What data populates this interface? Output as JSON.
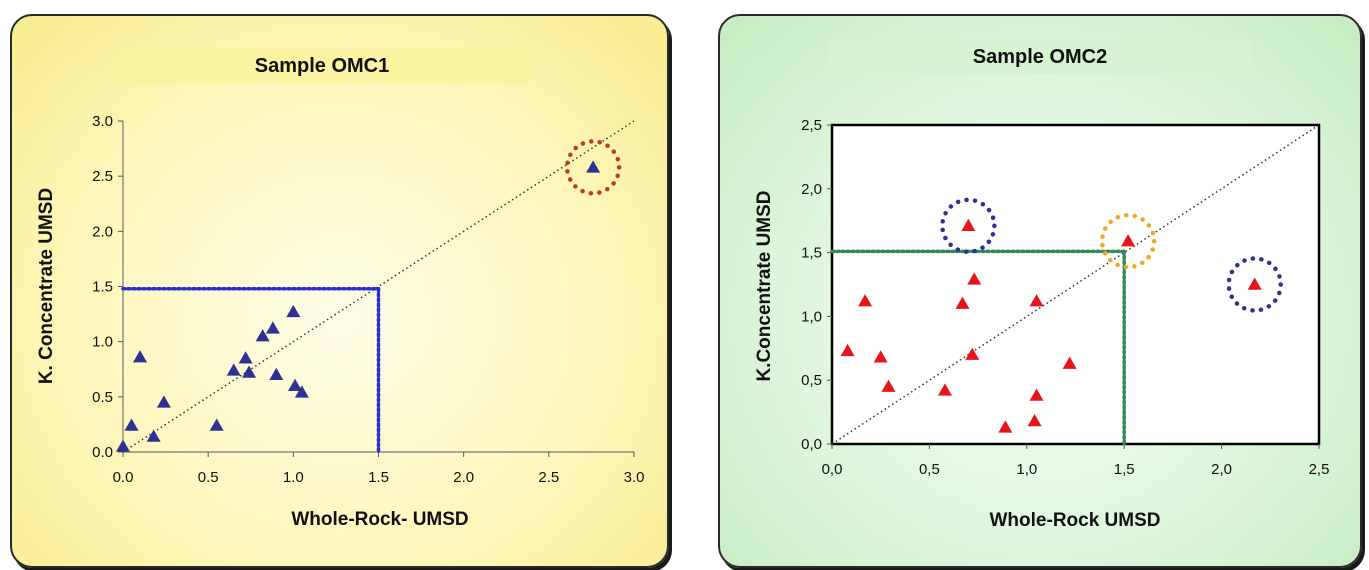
{
  "panels": [
    {
      "title": "Sample OMC1"
    },
    {
      "title": "Sample OMC2"
    }
  ],
  "chart_data": [
    {
      "type": "scatter",
      "title": "Sample OMC1",
      "xlabel": "Whole-Rock-  UMSD",
      "ylabel": "K. Concentrate UMSD",
      "xlim": [
        0,
        3
      ],
      "ylim": [
        0,
        3
      ],
      "x_ticks": [
        "0.0",
        "0.5",
        "1.0",
        "1.5",
        "2.0",
        "2.5",
        "3.0"
      ],
      "y_ticks": [
        "0.0",
        "0.5",
        "1.0",
        "1.5",
        "2.0",
        "2.5",
        "3.0"
      ],
      "grid": false,
      "marker_color": "#2e3192",
      "points": [
        {
          "x": 0.0,
          "y": 0.05
        },
        {
          "x": 0.05,
          "y": 0.24
        },
        {
          "x": 0.1,
          "y": 0.86
        },
        {
          "x": 0.18,
          "y": 0.14
        },
        {
          "x": 0.24,
          "y": 0.45
        },
        {
          "x": 0.55,
          "y": 0.24
        },
        {
          "x": 0.65,
          "y": 0.74
        },
        {
          "x": 0.72,
          "y": 0.85
        },
        {
          "x": 0.74,
          "y": 0.72
        },
        {
          "x": 0.82,
          "y": 1.05
        },
        {
          "x": 0.88,
          "y": 1.12
        },
        {
          "x": 0.9,
          "y": 0.7
        },
        {
          "x": 1.0,
          "y": 1.27
        },
        {
          "x": 1.01,
          "y": 0.6
        },
        {
          "x": 1.05,
          "y": 0.54
        },
        {
          "x": 2.76,
          "y": 2.58
        }
      ],
      "identity_line": true,
      "guide": {
        "x": 1.5,
        "y": 1.48,
        "color": "#2b2bd8"
      },
      "highlights": [
        {
          "x": 2.76,
          "y": 2.58,
          "color": "#c0392b"
        }
      ]
    },
    {
      "type": "scatter",
      "title": "Sample OMC2",
      "xlabel": "Whole-Rock UMSD",
      "ylabel": "K.Concentrate UMSD",
      "xlim": [
        0,
        2.5
      ],
      "ylim": [
        0,
        2.5
      ],
      "x_ticks": [
        "0,0",
        "0,5",
        "1,0",
        "1,5",
        "2,0",
        "2,5"
      ],
      "y_ticks": [
        "0,0",
        "0,5",
        "1,0",
        "1,5",
        "2,0",
        "2,5"
      ],
      "grid": false,
      "marker_color": "#e8141b",
      "points": [
        {
          "x": 0.08,
          "y": 0.73
        },
        {
          "x": 0.17,
          "y": 1.12
        },
        {
          "x": 0.25,
          "y": 0.68
        },
        {
          "x": 0.29,
          "y": 0.45
        },
        {
          "x": 0.58,
          "y": 0.42
        },
        {
          "x": 0.67,
          "y": 1.1
        },
        {
          "x": 0.7,
          "y": 1.71
        },
        {
          "x": 0.72,
          "y": 0.7
        },
        {
          "x": 0.73,
          "y": 1.29
        },
        {
          "x": 0.89,
          "y": 0.13
        },
        {
          "x": 1.04,
          "y": 0.18
        },
        {
          "x": 1.05,
          "y": 0.38
        },
        {
          "x": 1.05,
          "y": 1.12
        },
        {
          "x": 1.22,
          "y": 0.63
        },
        {
          "x": 1.52,
          "y": 1.59
        },
        {
          "x": 2.17,
          "y": 1.25
        }
      ],
      "identity_line": true,
      "guide": {
        "x": 1.5,
        "y": 1.51,
        "color": "#2e8b57"
      },
      "highlights": [
        {
          "x": 0.7,
          "y": 1.71,
          "color": "#2e3192"
        },
        {
          "x": 1.52,
          "y": 1.59,
          "color": "#f5a623"
        },
        {
          "x": 2.17,
          "y": 1.25,
          "color": "#2e3192"
        }
      ]
    }
  ]
}
